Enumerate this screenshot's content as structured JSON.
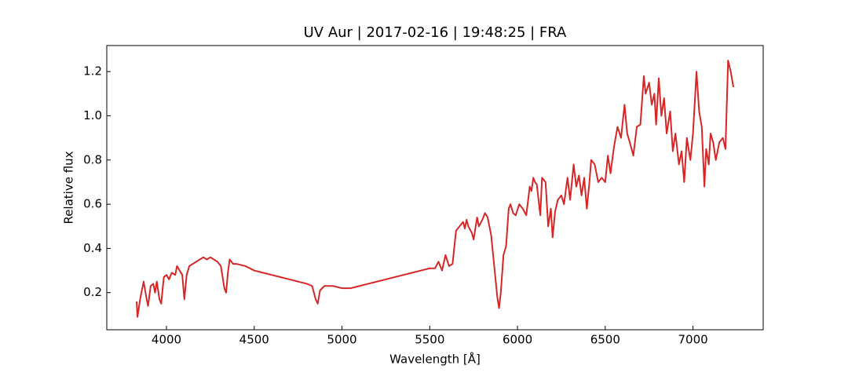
{
  "chart_data": {
    "type": "line",
    "title": "UV Aur | 2017-02-16 | 19:48:25 | FRA",
    "xlabel": "Wavelength [Å]",
    "ylabel": "Relative flux",
    "xlim": [
      3660,
      7400
    ],
    "ylim": [
      0.032,
      1.318
    ],
    "xticks": [
      4000,
      4500,
      5000,
      5500,
      6000,
      6500,
      7000
    ],
    "yticks": [
      {
        "value": 0.2,
        "label": "0.2"
      },
      {
        "value": 0.4,
        "label": "0.4"
      },
      {
        "value": 0.6,
        "label": "0.6"
      },
      {
        "value": 0.8,
        "label": "0.8"
      },
      {
        "value": 1.0,
        "label": "1.0"
      },
      {
        "value": 1.2,
        "label": "1.2"
      }
    ],
    "x": [
      3830,
      3835,
      3850,
      3870,
      3885,
      3895,
      3910,
      3925,
      3935,
      3945,
      3960,
      3970,
      3985,
      4000,
      4015,
      4030,
      4050,
      4060,
      4075,
      4090,
      4102,
      4115,
      4130,
      4150,
      4170,
      4190,
      4210,
      4230,
      4250,
      4270,
      4290,
      4310,
      4330,
      4340,
      4350,
      4360,
      4380,
      4400,
      4450,
      4500,
      4550,
      4600,
      4650,
      4700,
      4750,
      4800,
      4830,
      4850,
      4862,
      4875,
      4900,
      4950,
      5000,
      5050,
      5100,
      5150,
      5200,
      5250,
      5300,
      5350,
      5400,
      5450,
      5500,
      5530,
      5550,
      5570,
      5590,
      5610,
      5630,
      5650,
      5670,
      5690,
      5700,
      5710,
      5720,
      5740,
      5750,
      5770,
      5780,
      5800,
      5815,
      5830,
      5850,
      5870,
      5885,
      5895,
      5905,
      5920,
      5935,
      5950,
      5960,
      5975,
      5990,
      6010,
      6030,
      6050,
      6070,
      6080,
      6090,
      6100,
      6110,
      6130,
      6140,
      6160,
      6175,
      6190,
      6200,
      6215,
      6230,
      6250,
      6265,
      6285,
      6300,
      6320,
      6335,
      6350,
      6365,
      6380,
      6395,
      6410,
      6420,
      6440,
      6460,
      6480,
      6500,
      6515,
      6530,
      6550,
      6570,
      6590,
      6610,
      6625,
      6640,
      6660,
      6680,
      6700,
      6720,
      6730,
      6750,
      6765,
      6780,
      6790,
      6805,
      6820,
      6835,
      6850,
      6870,
      6885,
      6900,
      6920,
      6935,
      6950,
      6965,
      6985,
      7000,
      7020,
      7035,
      7050,
      7065,
      7075,
      7090,
      7100,
      7115,
      7130,
      7150,
      7170,
      7185,
      7200,
      7215,
      7230
    ],
    "series": [
      {
        "color": "#d62728",
        "values": [
          0.16,
          0.09,
          0.17,
          0.25,
          0.18,
          0.14,
          0.23,
          0.24,
          0.2,
          0.25,
          0.17,
          0.15,
          0.27,
          0.28,
          0.26,
          0.29,
          0.28,
          0.32,
          0.3,
          0.28,
          0.17,
          0.28,
          0.32,
          0.33,
          0.34,
          0.35,
          0.36,
          0.35,
          0.36,
          0.35,
          0.34,
          0.32,
          0.22,
          0.2,
          0.29,
          0.35,
          0.33,
          0.33,
          0.32,
          0.3,
          0.29,
          0.28,
          0.27,
          0.26,
          0.25,
          0.24,
          0.23,
          0.17,
          0.15,
          0.21,
          0.23,
          0.23,
          0.22,
          0.22,
          0.23,
          0.24,
          0.25,
          0.26,
          0.27,
          0.28,
          0.29,
          0.3,
          0.31,
          0.31,
          0.34,
          0.3,
          0.37,
          0.32,
          0.33,
          0.48,
          0.5,
          0.52,
          0.49,
          0.53,
          0.5,
          0.47,
          0.44,
          0.54,
          0.5,
          0.53,
          0.56,
          0.54,
          0.46,
          0.3,
          0.18,
          0.13,
          0.2,
          0.37,
          0.41,
          0.58,
          0.6,
          0.56,
          0.55,
          0.6,
          0.58,
          0.55,
          0.68,
          0.66,
          0.72,
          0.7,
          0.69,
          0.55,
          0.72,
          0.7,
          0.5,
          0.58,
          0.45,
          0.57,
          0.62,
          0.64,
          0.6,
          0.72,
          0.62,
          0.78,
          0.68,
          0.73,
          0.64,
          0.72,
          0.58,
          0.7,
          0.8,
          0.78,
          0.7,
          0.72,
          0.7,
          0.82,
          0.74,
          0.86,
          0.95,
          0.9,
          1.05,
          0.92,
          0.88,
          0.82,
          0.95,
          0.96,
          1.18,
          1.1,
          1.15,
          1.05,
          1.1,
          0.96,
          1.17,
          1.0,
          1.08,
          0.92,
          1.02,
          0.84,
          0.92,
          0.78,
          0.84,
          0.7,
          0.9,
          0.8,
          0.92,
          1.2,
          1.02,
          0.95,
          0.68,
          0.85,
          0.78,
          0.92,
          0.88,
          0.8,
          0.88,
          0.9,
          0.85,
          1.25,
          1.2,
          1.13
        ]
      }
    ]
  }
}
